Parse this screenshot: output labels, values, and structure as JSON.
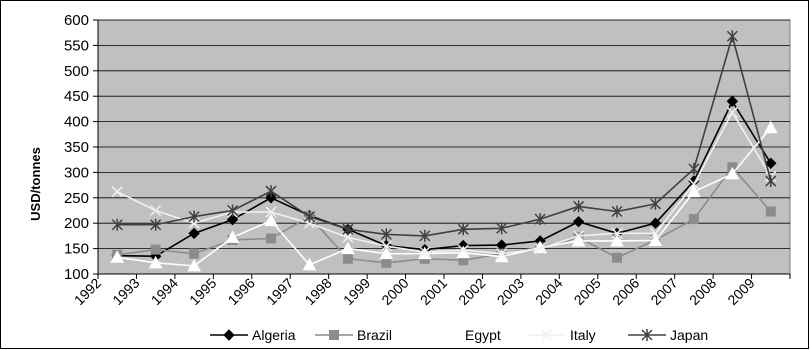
{
  "chart_data": {
    "type": "line",
    "title": "",
    "xlabel": "",
    "ylabel": "USD/tonnes",
    "ylim": [
      100,
      600
    ],
    "ytick_step": 50,
    "grid": "horizontal",
    "plot_background": "#c0c0c0",
    "legend_position": "bottom",
    "categories": [
      "1992",
      "1993",
      "1994",
      "1995",
      "1996",
      "1997",
      "1998",
      "1999",
      "2000",
      "2001",
      "2002",
      "2003",
      "2004",
      "2005",
      "2006",
      "2007",
      "2008",
      "2009"
    ],
    "series": [
      {
        "name": "Algeria",
        "color": "#000000",
        "marker": "diamond",
        "values": [
          136,
          135,
          180,
          207,
          250,
          215,
          188,
          156,
          148,
          156,
          157,
          165,
          203,
          180,
          200,
          283,
          440,
          318
        ]
      },
      {
        "name": "Brazil",
        "color": "#8c8c8c",
        "marker": "square",
        "values": [
          138,
          148,
          140,
          167,
          170,
          213,
          130,
          122,
          130,
          127,
          140,
          152,
          172,
          132,
          167,
          208,
          310,
          223
        ]
      },
      {
        "name": "Egypt",
        "color": "#ffffff",
        "marker": "triangle",
        "values": [
          133,
          122,
          116,
          172,
          205,
          118,
          150,
          140,
          140,
          142,
          134,
          152,
          165,
          165,
          166,
          262,
          297,
          388
        ]
      },
      {
        "name": "Italy",
        "color": "#f0f0f0",
        "marker": "x",
        "values": [
          262,
          225,
          200,
          222,
          222,
          200,
          172,
          155,
          143,
          147,
          140,
          150,
          175,
          180,
          180,
          277,
          418,
          292
        ]
      },
      {
        "name": "Japan",
        "color": "#404040",
        "marker": "star",
        "values": [
          197,
          197,
          213,
          225,
          263,
          213,
          188,
          178,
          175,
          188,
          190,
          208,
          233,
          223,
          238,
          307,
          568,
          283
        ]
      }
    ]
  }
}
